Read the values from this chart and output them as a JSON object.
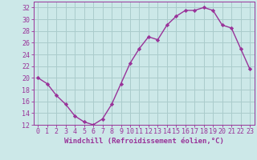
{
  "x": [
    0,
    1,
    2,
    3,
    4,
    5,
    6,
    7,
    8,
    9,
    10,
    11,
    12,
    13,
    14,
    15,
    16,
    17,
    18,
    19,
    20,
    21,
    22,
    23
  ],
  "y": [
    20,
    19,
    17,
    15.5,
    13.5,
    12.5,
    12,
    13,
    15.5,
    19,
    22.5,
    25,
    27,
    26.5,
    29,
    30.5,
    31.5,
    31.5,
    32,
    31.5,
    29,
    28.5,
    25,
    21.5
  ],
  "line_color": "#993399",
  "marker": "D",
  "marker_size": 2.2,
  "bg_color": "#cce8e8",
  "grid_color": "#aacccc",
  "xlabel": "Windchill (Refroidissement éolien,°C)",
  "ylim": [
    12,
    33
  ],
  "yticks": [
    12,
    14,
    16,
    18,
    20,
    22,
    24,
    26,
    28,
    30,
    32
  ],
  "xlim": [
    -0.5,
    23.5
  ],
  "xticks": [
    0,
    1,
    2,
    3,
    4,
    5,
    6,
    7,
    8,
    9,
    10,
    11,
    12,
    13,
    14,
    15,
    16,
    17,
    18,
    19,
    20,
    21,
    22,
    23
  ],
  "axis_color": "#993399",
  "tick_color": "#993399",
  "label_fontsize": 6.5,
  "tick_fontsize": 6.0
}
